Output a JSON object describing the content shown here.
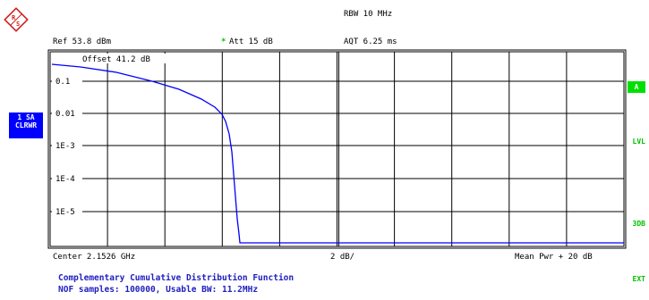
{
  "header": {
    "rbw": "RBW 10 MHz",
    "ref": "Ref  53.8 dBm",
    "att_marker": "*",
    "att": "Att  15 dB",
    "aqt": "AQT 6.25 ms"
  },
  "plot": {
    "offset": "Offset  41.2 dB",
    "y_labels": [
      "0.1",
      "0.01",
      "1E-3",
      "1E-4",
      "1E-5"
    ]
  },
  "left_panel": {
    "line1": "1 SA",
    "line2": "CLRWR"
  },
  "right_panel": {
    "a": "A",
    "lvl": "LVL",
    "db3": "3DB",
    "ext": "EXT"
  },
  "bottom": {
    "center": "Center 2.1526 GHz",
    "scale": "2 dB/",
    "mean": "Mean Pwr + 20 dB"
  },
  "footer": {
    "line1": "Complementary Cumulative Distribution Function",
    "line2": "NOF samples: 100000, Usable BW:  11.2MHz"
  },
  "colors": {
    "trace": "#0000ff",
    "side_label": "#0000ff",
    "status_green": "#00c000"
  }
}
